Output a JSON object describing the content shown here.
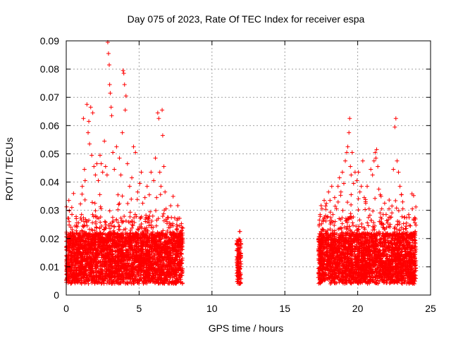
{
  "chart_data": {
    "type": "scatter",
    "title": "Day 075 of 2023, Rate Of TEC Index for receiver espa",
    "xlabel": "GPS time / hours",
    "ylabel": "ROTI / TECUs",
    "xlim": [
      0,
      25
    ],
    "ylim": [
      0,
      0.09
    ],
    "xticks": [
      "0",
      "5",
      "10",
      "15",
      "20",
      "25"
    ],
    "yticks": [
      "0",
      "0.01",
      "0.02",
      "0.03",
      "0.04",
      "0.05",
      "0.06",
      "0.07",
      "0.08",
      "0.09"
    ],
    "grid": true,
    "marker": "+",
    "color": "#ff0000",
    "series": [
      {
        "name": "ROTI",
        "data_windows_hours": [
          [
            0.0,
            8.0
          ],
          [
            11.7,
            12.0
          ],
          [
            17.3,
            24.0
          ]
        ],
        "points": [
          [
            0.05,
            0.0105
          ],
          [
            0.12,
            0.0142
          ],
          [
            0.18,
            0.0335
          ],
          [
            0.2,
            0.026
          ],
          [
            0.25,
            0.0085
          ],
          [
            0.32,
            0.024
          ],
          [
            0.38,
            0.031
          ],
          [
            0.45,
            0.0175
          ],
          [
            0.55,
            0.021
          ],
          [
            0.62,
            0.0128
          ],
          [
            0.7,
            0.0245
          ],
          [
            0.85,
            0.0215
          ],
          [
            0.95,
            0.0195
          ],
          [
            1.05,
            0.0285
          ],
          [
            1.1,
            0.0385
          ],
          [
            1.18,
            0.0625
          ],
          [
            1.25,
            0.0445
          ],
          [
            1.3,
            0.0405
          ],
          [
            1.42,
            0.0675
          ],
          [
            1.5,
            0.0575
          ],
          [
            1.55,
            0.0615
          ],
          [
            1.6,
            0.0535
          ],
          [
            1.68,
            0.0665
          ],
          [
            1.75,
            0.0495
          ],
          [
            1.82,
            0.0645
          ],
          [
            1.9,
            0.0455
          ],
          [
            2.0,
            0.0425
          ],
          [
            2.1,
            0.0465
          ],
          [
            2.2,
            0.0405
          ],
          [
            2.32,
            0.0495
          ],
          [
            2.4,
            0.0465
          ],
          [
            2.5,
            0.0435
          ],
          [
            2.62,
            0.0545
          ],
          [
            2.7,
            0.0455
          ],
          [
            2.8,
            0.0425
          ],
          [
            2.85,
            0.0895
          ],
          [
            2.9,
            0.0855
          ],
          [
            2.95,
            0.0815
          ],
          [
            2.98,
            0.0745
          ],
          [
            3.02,
            0.0715
          ],
          [
            3.08,
            0.0665
          ],
          [
            3.12,
            0.0635
          ],
          [
            3.2,
            0.0505
          ],
          [
            3.3,
            0.0445
          ],
          [
            3.45,
            0.0525
          ],
          [
            3.55,
            0.0355
          ],
          [
            3.65,
            0.0485
          ],
          [
            3.75,
            0.0425
          ],
          [
            3.85,
            0.0575
          ],
          [
            3.9,
            0.0795
          ],
          [
            3.95,
            0.0785
          ],
          [
            4.0,
            0.0745
          ],
          [
            4.05,
            0.0655
          ],
          [
            4.1,
            0.0705
          ],
          [
            4.2,
            0.0465
          ],
          [
            4.35,
            0.0385
          ],
          [
            4.5,
            0.0415
          ],
          [
            4.62,
            0.0525
          ],
          [
            4.75,
            0.0505
          ],
          [
            4.9,
            0.0365
          ],
          [
            5.05,
            0.0395
          ],
          [
            5.15,
            0.0435
          ],
          [
            5.25,
            0.0325
          ],
          [
            5.4,
            0.0345
          ],
          [
            5.55,
            0.0385
          ],
          [
            5.7,
            0.0355
          ],
          [
            5.82,
            0.0435
          ],
          [
            6.0,
            0.0405
          ],
          [
            6.12,
            0.0485
          ],
          [
            6.2,
            0.0345
          ],
          [
            6.28,
            0.0645
          ],
          [
            6.35,
            0.0625
          ],
          [
            6.42,
            0.0435
          ],
          [
            6.5,
            0.0385
          ],
          [
            6.58,
            0.0655
          ],
          [
            6.62,
            0.0565
          ],
          [
            6.7,
            0.0455
          ],
          [
            6.78,
            0.0365
          ],
          [
            6.85,
            0.0305
          ],
          [
            6.95,
            0.0275
          ],
          [
            7.1,
            0.0255
          ],
          [
            7.2,
            0.0215
          ],
          [
            7.32,
            0.0245
          ],
          [
            7.45,
            0.0205
          ],
          [
            7.6,
            0.0235
          ],
          [
            7.72,
            0.0195
          ],
          [
            7.85,
            0.0225
          ],
          [
            7.95,
            0.0185
          ],
          [
            11.75,
            0.0135
          ],
          [
            11.8,
            0.0165
          ],
          [
            11.85,
            0.0195
          ],
          [
            11.9,
            0.0225
          ],
          [
            11.92,
            0.0225
          ],
          [
            11.86,
            0.0085
          ],
          [
            11.82,
            0.0055
          ],
          [
            11.78,
            0.0105
          ],
          [
            17.35,
            0.0245
          ],
          [
            17.42,
            0.0285
          ],
          [
            17.48,
            0.0225
          ],
          [
            17.55,
            0.0305
          ],
          [
            17.62,
            0.0265
          ],
          [
            17.7,
            0.0335
          ],
          [
            17.8,
            0.0315
          ],
          [
            17.9,
            0.0275
          ],
          [
            18.0,
            0.0365
          ],
          [
            18.1,
            0.0335
          ],
          [
            18.22,
            0.0385
          ],
          [
            18.3,
            0.0285
          ],
          [
            18.42,
            0.0345
          ],
          [
            18.55,
            0.0305
          ],
          [
            18.65,
            0.0385
          ],
          [
            18.75,
            0.0415
          ],
          [
            18.85,
            0.0365
          ],
          [
            18.95,
            0.0435
          ],
          [
            19.05,
            0.0395
          ],
          [
            19.15,
            0.0475
          ],
          [
            19.25,
            0.0505
          ],
          [
            19.32,
            0.0525
          ],
          [
            19.4,
            0.0575
          ],
          [
            19.45,
            0.0625
          ],
          [
            19.5,
            0.0455
          ],
          [
            19.55,
            0.0425
          ],
          [
            19.62,
            0.0505
          ],
          [
            19.72,
            0.0395
          ],
          [
            19.82,
            0.0435
          ],
          [
            19.95,
            0.0405
          ],
          [
            20.05,
            0.0435
          ],
          [
            20.15,
            0.0365
          ],
          [
            20.25,
            0.0385
          ],
          [
            20.35,
            0.0475
          ],
          [
            20.45,
            0.0345
          ],
          [
            20.55,
            0.0325
          ],
          [
            20.65,
            0.0385
          ],
          [
            20.78,
            0.0305
          ],
          [
            20.9,
            0.0445
          ],
          [
            21.02,
            0.0425
          ],
          [
            21.12,
            0.0475
          ],
          [
            21.2,
            0.0505
          ],
          [
            21.25,
            0.0485
          ],
          [
            21.3,
            0.0515
          ],
          [
            21.38,
            0.0455
          ],
          [
            21.45,
            0.0375
          ],
          [
            21.55,
            0.0355
          ],
          [
            21.65,
            0.0305
          ],
          [
            21.75,
            0.0285
          ],
          [
            21.85,
            0.0325
          ],
          [
            21.95,
            0.0285
          ],
          [
            22.05,
            0.0255
          ],
          [
            22.15,
            0.0305
          ],
          [
            22.25,
            0.0275
          ],
          [
            22.35,
            0.0315
          ],
          [
            22.45,
            0.0445
          ],
          [
            22.55,
            0.0595
          ],
          [
            22.62,
            0.0625
          ],
          [
            22.7,
            0.0475
          ],
          [
            22.8,
            0.0435
          ],
          [
            22.9,
            0.0385
          ],
          [
            23.0,
            0.0355
          ],
          [
            23.1,
            0.0305
          ],
          [
            23.2,
            0.0275
          ],
          [
            23.35,
            0.0255
          ],
          [
            23.5,
            0.0285
          ],
          [
            23.62,
            0.0245
          ],
          [
            23.75,
            0.0305
          ],
          [
            23.85,
            0.0265
          ],
          [
            23.95,
            0.0225
          ]
        ]
      }
    ]
  }
}
